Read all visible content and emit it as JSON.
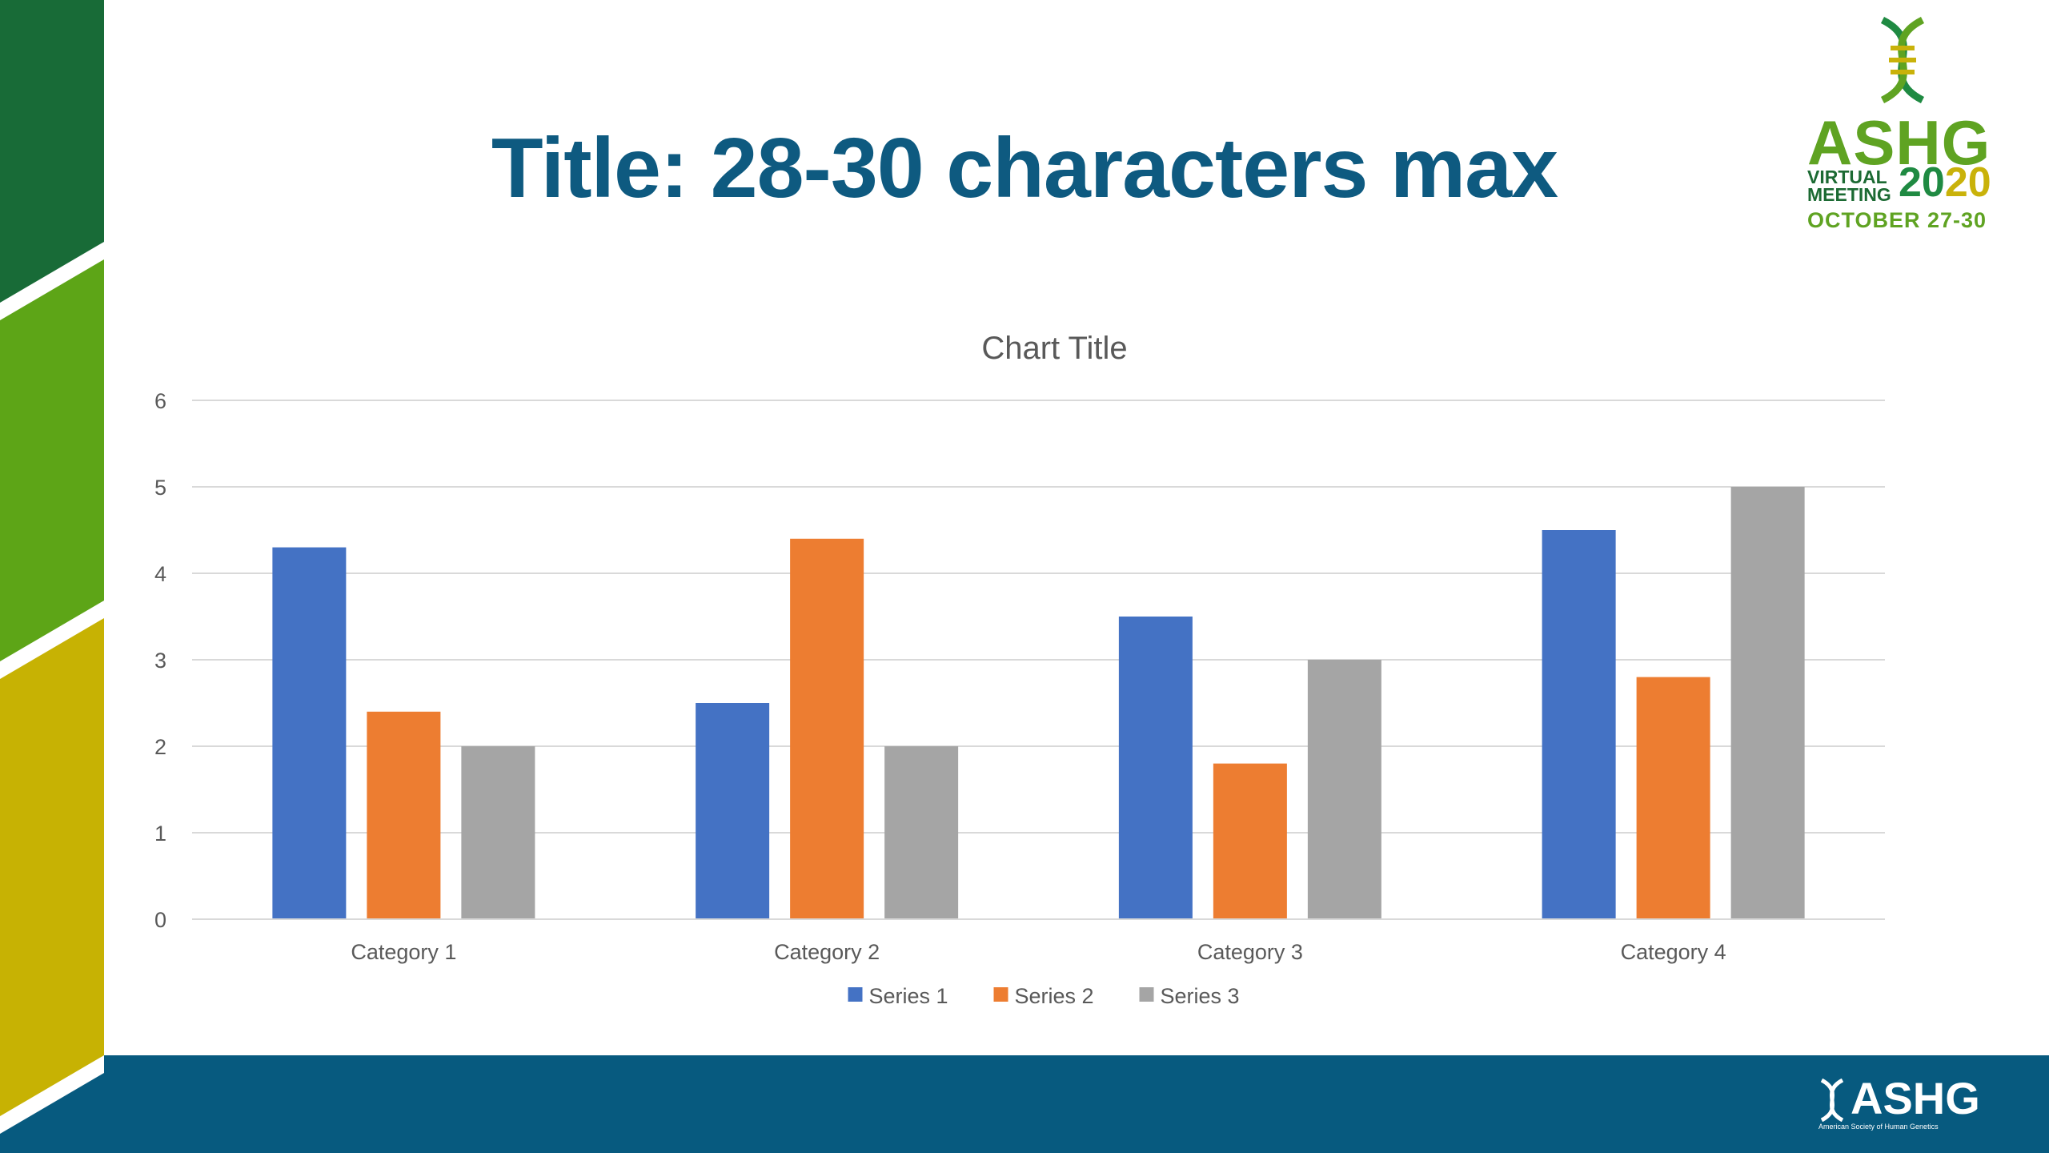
{
  "slide": {
    "title": "Title: 28-30 characters max"
  },
  "logo": {
    "word": "ASHG",
    "virtual": "VIRTUAL",
    "meeting": "MEETING",
    "year_a": "20",
    "year_b": "20",
    "dates": "OCTOBER 27-30"
  },
  "footer_logo": {
    "word": "ASHG",
    "subtitle": "American Society of Human Genetics"
  },
  "colors": {
    "title": "#0e5a80",
    "band_dark_green": "#186b37",
    "band_green": "#5da517",
    "band_yellow": "#c7b203",
    "footer": "#075a7f"
  },
  "chart_data": {
    "type": "bar",
    "title": "Chart Title",
    "categories": [
      "Category 1",
      "Category 2",
      "Category 3",
      "Category 4"
    ],
    "series": [
      {
        "name": "Series 1",
        "values": [
          4.3,
          2.5,
          3.5,
          4.5
        ],
        "color": "#4472c4"
      },
      {
        "name": "Series 2",
        "values": [
          2.4,
          4.4,
          1.8,
          2.8
        ],
        "color": "#ed7d31"
      },
      {
        "name": "Series 3",
        "values": [
          2,
          2,
          3,
          5
        ],
        "color": "#a5a5a5"
      }
    ],
    "ylim": [
      0,
      6
    ],
    "yticks": [
      "0",
      "1",
      "2",
      "3",
      "4",
      "5",
      "6"
    ],
    "grid": true,
    "legend": "bottom"
  }
}
